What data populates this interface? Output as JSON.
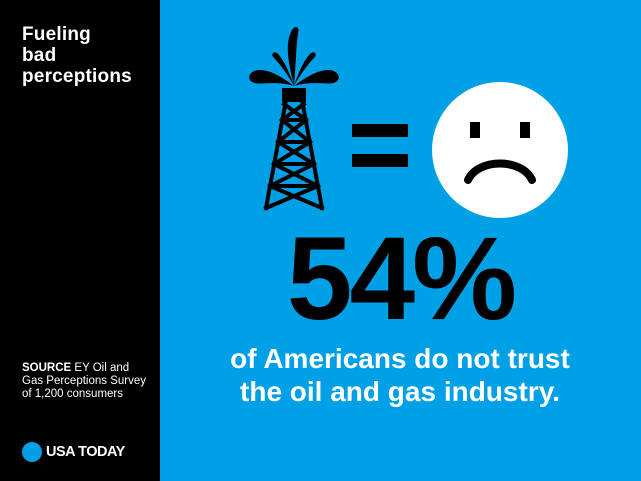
{
  "sidebar": {
    "title_lines": [
      "Fueling",
      "bad",
      "perceptions"
    ],
    "source_label": "SOURCE",
    "source_text": "EY Oil and Gas Perceptions Survey of 1,200 consumers",
    "brand": "USA TODAY"
  },
  "main": {
    "icons": [
      "oil-derrick-icon",
      "equals-icon",
      "sad-face-icon"
    ],
    "stat": "54%",
    "description": "of Americans do not trust the oil and gas industry."
  },
  "colors": {
    "background": "#00a0e6",
    "sidebar": "#000000",
    "text_dark": "#000000",
    "text_light": "#ffffff"
  }
}
